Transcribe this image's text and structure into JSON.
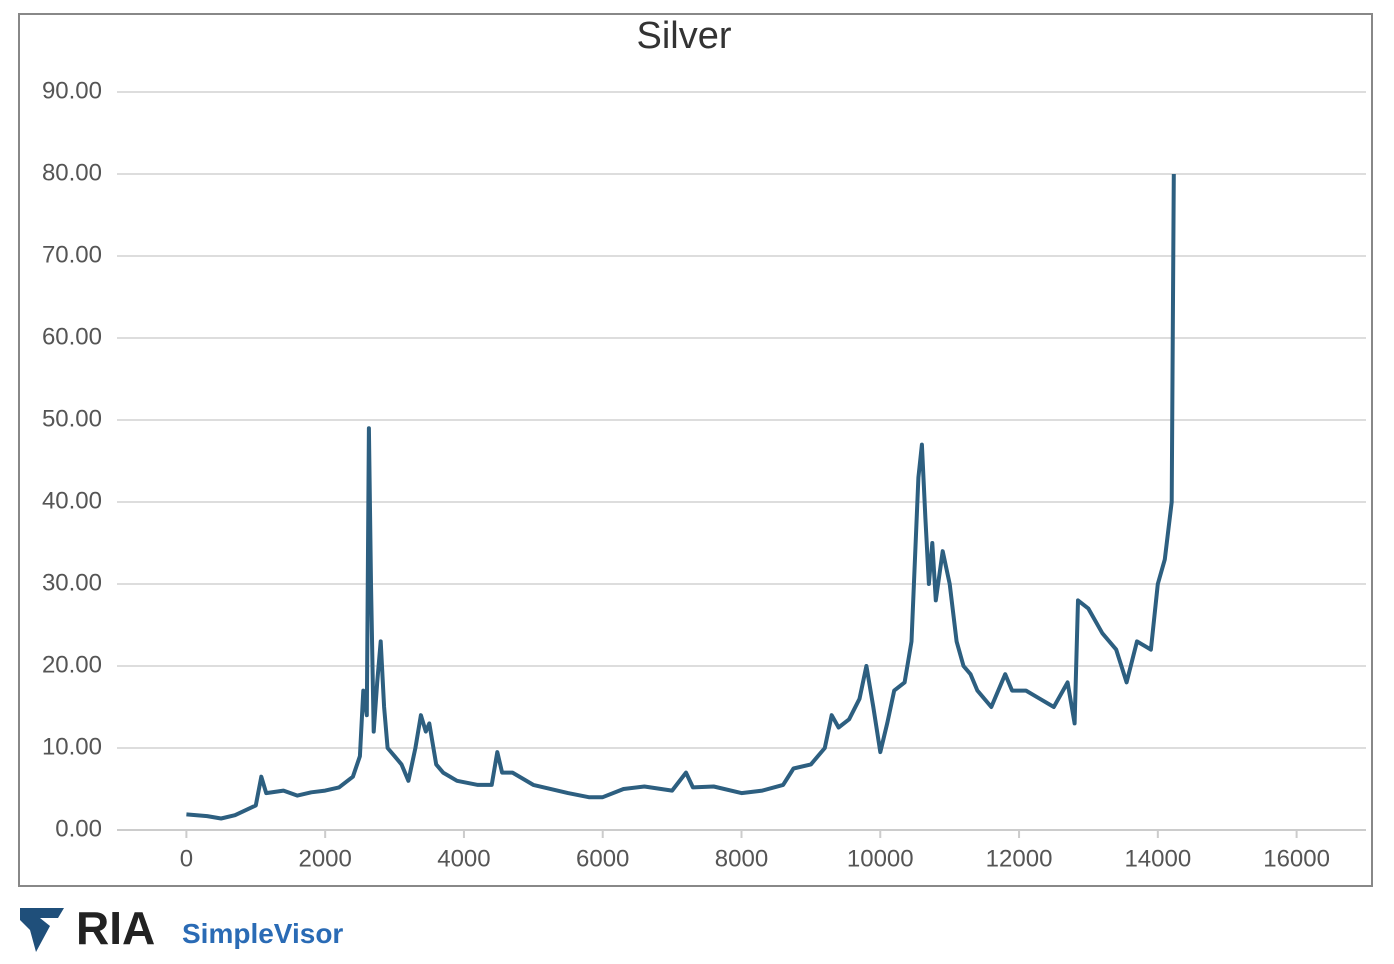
{
  "chart_data": {
    "type": "line",
    "title": "Silver",
    "x": [
      0,
      300,
      500,
      700,
      1000,
      1080,
      1150,
      1400,
      1600,
      1800,
      2000,
      2200,
      2400,
      2500,
      2550,
      2600,
      2630,
      2660,
      2700,
      2750,
      2800,
      2850,
      2900,
      3000,
      3100,
      3200,
      3300,
      3380,
      3450,
      3500,
      3600,
      3700,
      3900,
      4200,
      4400,
      4480,
      4550,
      4700,
      5000,
      5500,
      5800,
      6000,
      6300,
      6600,
      7000,
      7200,
      7300,
      7600,
      8000,
      8300,
      8600,
      8750,
      9000,
      9200,
      9300,
      9400,
      9550,
      9700,
      9800,
      9900,
      10000,
      10100,
      10200,
      10350,
      10450,
      10550,
      10600,
      10650,
      10700,
      10750,
      10800,
      10900,
      11000,
      11100,
      11200,
      11300,
      11400,
      11600,
      11800,
      11900,
      12100,
      12300,
      12500,
      12700,
      12800,
      12850,
      13000,
      13200,
      13400,
      13550,
      13700,
      13900,
      14000,
      14100,
      14200,
      14230
    ],
    "series": [
      {
        "name": "Silver",
        "color": "#2d5f80",
        "values": [
          1.9,
          1.7,
          1.4,
          1.8,
          3,
          6.5,
          4.5,
          4.8,
          4.2,
          4.6,
          4.8,
          5.2,
          6.5,
          9,
          17,
          14,
          49,
          30,
          12,
          18,
          23,
          15,
          10,
          9,
          8,
          6,
          10,
          14,
          12,
          13,
          8,
          7,
          6,
          5.5,
          5.5,
          9.5,
          7,
          7,
          5.5,
          4.5,
          4,
          4,
          5,
          5.3,
          4.8,
          7,
          5.2,
          5.3,
          4.5,
          4.8,
          5.5,
          7.5,
          8,
          10,
          14,
          12.5,
          13.5,
          16,
          20,
          15,
          9.5,
          13,
          17,
          18,
          23,
          43,
          47,
          38,
          30,
          35,
          28,
          34,
          30,
          23,
          20,
          19,
          17,
          15,
          19,
          17,
          17,
          16,
          15,
          18,
          13,
          28,
          27,
          24,
          22,
          18,
          23,
          22,
          30,
          33,
          40,
          80
        ]
      }
    ],
    "xlim": [
      -1000,
      17000
    ],
    "xticks": [
      0,
      2000,
      4000,
      6000,
      8000,
      10000,
      12000,
      14000,
      16000
    ],
    "ylim": [
      0,
      90
    ],
    "yticks": [
      {
        "value": 0,
        "label": "0.00"
      },
      {
        "value": 10,
        "label": "10.00"
      },
      {
        "value": 20,
        "label": "20.00"
      },
      {
        "value": 30,
        "label": "30.00"
      },
      {
        "value": 40,
        "label": "40.00"
      },
      {
        "value": 50,
        "label": "50.00"
      },
      {
        "value": 60,
        "label": "60.00"
      },
      {
        "value": 70,
        "label": "70.00"
      },
      {
        "value": 80,
        "label": "80.00"
      },
      {
        "value": 90,
        "label": "90.00"
      }
    ],
    "grid": true
  },
  "logo": {
    "name": "RIA",
    "product": "SimpleVisor"
  }
}
